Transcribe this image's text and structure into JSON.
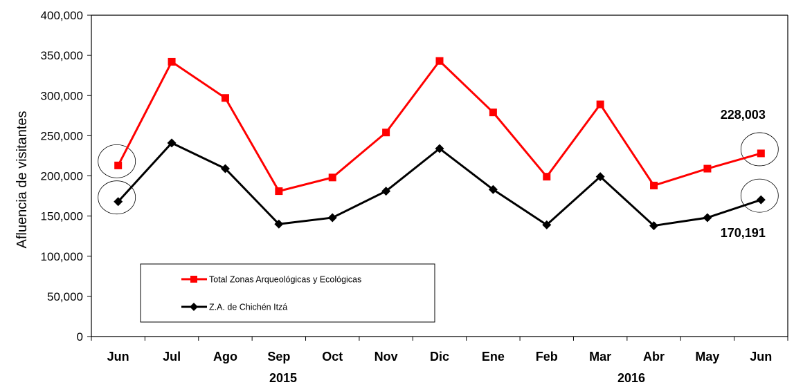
{
  "chart_data": {
    "type": "line",
    "ylabel": "Afluencia de visitantes",
    "xlabel": "",
    "categories": [
      "Jun",
      "Jul",
      "Ago",
      "Sep",
      "Oct",
      "Nov",
      "Dic",
      "Ene",
      "Feb",
      "Mar",
      "Abr",
      "May",
      "Jun"
    ],
    "year_labels": [
      "2015",
      "2016"
    ],
    "ylim": [
      0,
      400000
    ],
    "yticks": [
      0,
      50000,
      100000,
      150000,
      200000,
      250000,
      300000,
      350000,
      400000
    ],
    "ytick_labels": [
      "0",
      "50,000",
      "100,000",
      "150,000",
      "200,000",
      "250,000",
      "300,000",
      "350,000",
      "400,000"
    ],
    "grid": false,
    "legend_position": "lower-left",
    "series": [
      {
        "name": "Total Zonas Arqueológicas y Ecológicas",
        "color": "#ff0000",
        "marker": "square",
        "values": [
          213000,
          342000,
          297000,
          181000,
          198000,
          254000,
          343000,
          279000,
          199000,
          289000,
          188000,
          209000,
          228003
        ]
      },
      {
        "name": "Z.A. de Chichén Itzá",
        "color": "#000000",
        "marker": "diamond",
        "values": [
          168000,
          241000,
          209000,
          140000,
          148000,
          181000,
          234000,
          183000,
          139000,
          199000,
          138000,
          148000,
          170191
        ]
      }
    ],
    "annotations": [
      {
        "text": "228,003",
        "series": 0,
        "index": 12
      },
      {
        "text": "170,191",
        "series": 1,
        "index": 12
      }
    ]
  }
}
